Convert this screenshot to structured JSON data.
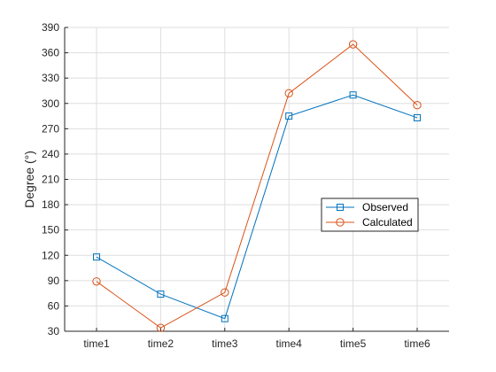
{
  "chart_data": {
    "type": "line",
    "title": "",
    "xlabel": "",
    "ylabel": "Degree (°)",
    "categories": [
      "time1",
      "time2",
      "time3",
      "time4",
      "time5",
      "time6"
    ],
    "ylim": [
      30,
      390
    ],
    "yticks": [
      30,
      60,
      90,
      120,
      150,
      180,
      210,
      240,
      270,
      300,
      330,
      360,
      390
    ],
    "grid": true,
    "legend_position": "center-right",
    "series": [
      {
        "name": "Observed",
        "values": [
          118,
          74,
          45,
          285,
          310,
          283
        ],
        "color": "#0072BD",
        "marker": "square"
      },
      {
        "name": "Calculated",
        "values": [
          89,
          34,
          76,
          312,
          370,
          298
        ],
        "color": "#D95319",
        "marker": "circle"
      }
    ]
  }
}
